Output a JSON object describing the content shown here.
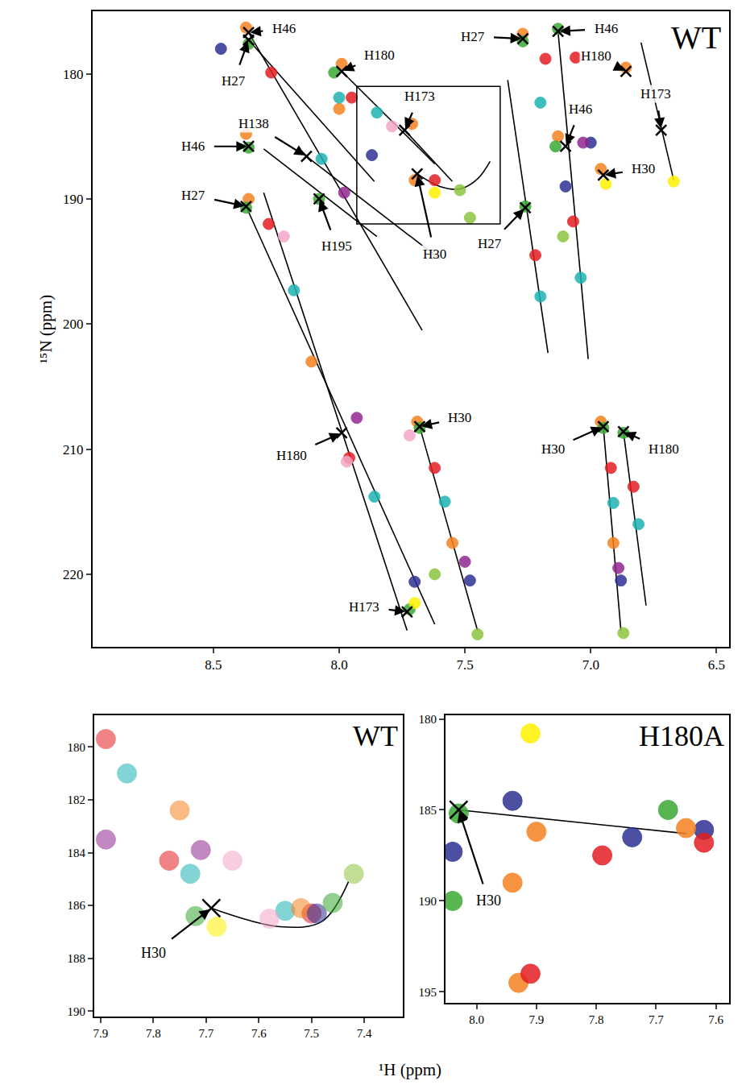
{
  "chart_data": [
    {
      "type": "scatter",
      "label": "WT",
      "y_label": "¹⁵N (ppm)",
      "xlim": [
        8.98,
        6.45
      ],
      "xticks": [
        8.5,
        {
          "value": 8,
          "label": "8.0"
        },
        7.5,
        {
          "value": 7,
          "label": "7.0"
        },
        6.5
      ],
      "ylim": [
        225.8,
        175
      ],
      "yticks": [
        180,
        190,
        200,
        210,
        220
      ],
      "box": {
        "x0": 7.93,
        "x1": 7.36,
        "y0": 181.0,
        "y1": 192.0
      },
      "series": [
        {
          "type": "line",
          "color": "#000000",
          "line_style": "solid",
          "x": [
            8.36,
            7.67,
            null,
            8.36,
            7.86,
            null,
            7.99,
            7.62,
            null,
            7.74,
            7.55,
            null,
            8.13,
            7.6,
            null,
            8.3,
            7.85,
            null,
            8.37,
            7.62,
            null,
            8.3,
            7.73,
            null,
            7.68,
            7.45,
            null,
            7.33,
            7.17,
            null,
            7.13,
            7.01,
            null,
            6.8,
            6.67,
            null,
            6.95,
            6.88,
            null,
            6.87,
            6.78
          ],
          "y": [
            176.7,
            200.5,
            null,
            177.3,
            188.6,
            null,
            179.8,
            187.2,
            null,
            184.5,
            188.6,
            null,
            186.6,
            194.8,
            null,
            186.0,
            193.0,
            null,
            190.6,
            224.0,
            null,
            189.5,
            224.5,
            null,
            208.2,
            224.5,
            null,
            180.5,
            202.3,
            null,
            176.6,
            202.8,
            null,
            177.5,
            188.5,
            null,
            208.2,
            224.5,
            null,
            208.6,
            222.5
          ]
        },
        {
          "type": "line",
          "color": "#000000",
          "line_style": "spline",
          "x": [
            7.69,
            7.6,
            7.52,
            7.45,
            7.4
          ],
          "y": [
            188.0,
            189.0,
            189.2,
            188.4,
            187.0
          ]
        },
        {
          "type": "scatter",
          "marker": "circle",
          "color": "#f58220",
          "x": [
            8.37,
            8.37,
            8.36,
            7.99,
            7.71,
            7.69,
            7.27,
            7.13,
            6.96,
            6.86,
            6.96,
            8.11,
            7.55,
            6.91,
            8.0,
            7.7
          ],
          "y": [
            176.3,
            184.8,
            190.0,
            179.2,
            184.0,
            207.8,
            176.8,
            185.0,
            187.6,
            179.5,
            207.8,
            203.0,
            217.5,
            217.5,
            182.8,
            188.5
          ]
        },
        {
          "type": "scatter",
          "marker": "circle",
          "color": "#3aa935",
          "x": [
            8.36,
            8.36,
            8.37,
            8.02,
            8.08,
            7.72,
            7.27,
            7.14,
            7.13,
            7.26,
            6.95,
            6.87,
            7.68
          ],
          "y": [
            177.6,
            185.9,
            190.7,
            179.9,
            190.0,
            222.8,
            177.4,
            185.8,
            176.4,
            190.6,
            208.3,
            208.7,
            208.3
          ]
        },
        {
          "type": "scatter",
          "marker": "circle",
          "color": "#e31e24",
          "x": [
            8.27,
            8.28,
            7.95,
            7.96,
            7.62,
            7.22,
            7.07,
            6.92,
            6.83,
            7.62,
            7.18,
            7.06
          ],
          "y": [
            179.9,
            192.0,
            181.9,
            210.7,
            211.5,
            194.5,
            191.8,
            211.5,
            213.0,
            188.5,
            178.8,
            178.7
          ]
        },
        {
          "type": "scatter",
          "marker": "circle",
          "color": "#1fb3b3",
          "x": [
            8.18,
            7.85,
            7.86,
            7.58,
            7.2,
            7.04,
            6.91,
            6.81,
            8.0,
            7.2,
            8.07
          ],
          "y": [
            197.3,
            183.1,
            213.8,
            214.2,
            197.8,
            196.3,
            214.3,
            216.0,
            181.9,
            182.3,
            186.8
          ]
        },
        {
          "type": "scatter",
          "marker": "circle",
          "color": "#2e3192",
          "x": [
            7.87,
            7.48,
            6.88,
            7.7,
            7.1,
            7.0,
            8.47
          ],
          "y": [
            186.5,
            220.5,
            220.5,
            220.6,
            189.0,
            185.5,
            178.0
          ]
        },
        {
          "type": "scatter",
          "marker": "circle",
          "color": "#92278f",
          "x": [
            7.93,
            7.5,
            7.98,
            6.89,
            7.03
          ],
          "y": [
            207.5,
            219.0,
            189.5,
            219.5,
            185.5
          ]
        },
        {
          "type": "scatter",
          "marker": "circle",
          "color": "#f4a6c8",
          "x": [
            7.79,
            7.97,
            8.22,
            7.72
          ],
          "y": [
            184.2,
            211.0,
            193.0,
            208.9
          ]
        },
        {
          "type": "scatter",
          "marker": "circle",
          "color": "#8dc63f",
          "x": [
            7.52,
            7.45,
            6.87,
            7.62,
            7.11,
            7.48
          ],
          "y": [
            189.3,
            224.8,
            224.7,
            220.0,
            193.0,
            191.5
          ]
        },
        {
          "type": "scatter",
          "marker": "circle",
          "color": "#fff200",
          "x": [
            7.62,
            7.7,
            6.67,
            6.94
          ],
          "y": [
            189.5,
            222.3,
            188.6,
            188.8
          ]
        },
        {
          "type": "scatter",
          "marker": "x",
          "color": "#000000",
          "x": [
            8.36,
            8.36,
            7.99,
            7.74,
            7.69,
            8.13,
            8.36,
            8.37,
            8.08,
            7.27,
            7.13,
            6.86,
            6.72,
            7.1,
            6.95,
            7.26,
            7.68,
            7.99,
            6.95,
            6.87,
            7.73
          ],
          "y": [
            176.7,
            177.3,
            179.8,
            184.5,
            188.0,
            186.6,
            185.8,
            190.6,
            190.0,
            177.2,
            176.6,
            179.8,
            184.5,
            185.8,
            188.1,
            190.7,
            208.2,
            208.7,
            208.2,
            208.6,
            223.0
          ]
        }
      ],
      "annotations": [
        {
          "text": "H46",
          "x": 8.36,
          "y": 176.7,
          "tx": 8.22,
          "ty": 176.4
        },
        {
          "text": "H27",
          "x": 8.36,
          "y": 177.3,
          "tx": 8.42,
          "ty": 180.6
        },
        {
          "text": "H180",
          "x": 7.99,
          "y": 179.8,
          "tx": 7.84,
          "ty": 178.5
        },
        {
          "text": "H173",
          "x": 7.74,
          "y": 184.5,
          "tx": 7.68,
          "ty": 181.8
        },
        {
          "text": "H138",
          "x": 8.13,
          "y": 186.6,
          "tx": 8.34,
          "ty": 184.0
        },
        {
          "text": "H46",
          "x": 8.36,
          "y": 185.8,
          "tx": 8.58,
          "ty": 185.8
        },
        {
          "text": "H27",
          "x": 8.37,
          "y": 190.6,
          "tx": 8.58,
          "ty": 189.7
        },
        {
          "text": "H195",
          "x": 8.08,
          "y": 190.0,
          "tx": 8.01,
          "ty": 193.8
        },
        {
          "text": "H30",
          "x": 7.69,
          "y": 188.0,
          "tx": 7.62,
          "ty": 194.4
        },
        {
          "text": "H27",
          "x": 7.27,
          "y": 177.2,
          "tx": 7.47,
          "ty": 177.0
        },
        {
          "text": "H46",
          "x": 7.13,
          "y": 176.6,
          "tx": 6.94,
          "ty": 176.4
        },
        {
          "text": "H180",
          "x": 6.86,
          "y": 179.8,
          "tx": 6.98,
          "ty": 178.6
        },
        {
          "text": "H173",
          "x": 6.72,
          "y": 184.5,
          "tx": 6.74,
          "ty": 181.6
        },
        {
          "text": "H46",
          "x": 7.1,
          "y": 185.8,
          "tx": 7.04,
          "ty": 182.8
        },
        {
          "text": "H30",
          "x": 6.95,
          "y": 188.1,
          "tx": 6.79,
          "ty": 187.6
        },
        {
          "text": "H27",
          "x": 7.26,
          "y": 190.7,
          "tx": 7.4,
          "ty": 193.6
        },
        {
          "text": "H30",
          "x": 7.68,
          "y": 208.2,
          "tx": 7.52,
          "ty": 207.5
        },
        {
          "text": "H180",
          "x": 7.99,
          "y": 208.7,
          "tx": 8.19,
          "ty": 210.5
        },
        {
          "text": "H30",
          "x": 6.95,
          "y": 208.2,
          "tx": 7.15,
          "ty": 210.0
        },
        {
          "text": "H180",
          "x": 6.87,
          "y": 208.6,
          "tx": 6.71,
          "ty": 210.0
        },
        {
          "text": "H173",
          "x": 7.73,
          "y": 223.0,
          "tx": 7.9,
          "ty": 222.6
        }
      ]
    },
    {
      "type": "scatter",
      "label": "WT",
      "xlim": [
        7.912,
        7.327
      ],
      "xticks": [
        7.9,
        7.8,
        7.7,
        7.6,
        7.5,
        7.4
      ],
      "ylim": [
        190.2,
        178.8
      ],
      "yticks": [
        180,
        182,
        184,
        186,
        188,
        190
      ],
      "series": [
        {
          "type": "line",
          "color": "#000000",
          "line_style": "spline",
          "x": [
            7.69,
            7.56,
            7.48,
            7.43
          ],
          "y": [
            186.1,
            186.8,
            186.6,
            185.1
          ]
        },
        {
          "type": "scatter",
          "marker": "circle",
          "color": "#e31e24",
          "x": [
            7.89,
            7.5,
            7.77
          ],
          "y": [
            179.7,
            186.3,
            184.3
          ]
        },
        {
          "type": "scatter",
          "marker": "circle",
          "color": "#1fb3b3",
          "x": [
            7.85,
            7.55,
            7.73
          ],
          "y": [
            181.0,
            186.2,
            184.8
          ]
        },
        {
          "type": "scatter",
          "marker": "circle",
          "color": "#f58220",
          "x": [
            7.75,
            7.52
          ],
          "y": [
            182.4,
            186.1
          ]
        },
        {
          "type": "scatter",
          "marker": "circle",
          "color": "#92278f",
          "x": [
            7.71,
            7.89
          ],
          "y": [
            183.9,
            183.5
          ]
        },
        {
          "type": "scatter",
          "marker": "circle",
          "color": "#2e3192",
          "x": [
            7.49
          ],
          "y": [
            186.3
          ]
        },
        {
          "type": "scatter",
          "marker": "circle",
          "color": "#3aa935",
          "x": [
            7.72,
            7.46
          ],
          "y": [
            186.4,
            185.9
          ]
        },
        {
          "type": "scatter",
          "marker": "circle",
          "color": "#f4a6c8",
          "x": [
            7.65,
            7.58
          ],
          "y": [
            184.3,
            186.5
          ]
        },
        {
          "type": "scatter",
          "marker": "circle",
          "color": "#fff200",
          "x": [
            7.68
          ],
          "y": [
            186.8
          ]
        },
        {
          "type": "scatter",
          "marker": "circle",
          "color": "#8dc63f",
          "x": [
            7.42
          ],
          "y": [
            184.8
          ]
        },
        {
          "type": "scatter",
          "marker": "x",
          "color": "#000000",
          "x": [
            7.69
          ],
          "y": [
            186.1
          ]
        }
      ],
      "annotations": [
        {
          "text": "H30",
          "x": 7.69,
          "y": 186.1,
          "tx": 7.8,
          "ty": 187.8
        }
      ]
    },
    {
      "type": "scatter",
      "label": "H180A",
      "xlim": [
        8.052,
        7.578
      ],
      "xticks": [
        {
          "value": 8,
          "label": "8.0"
        },
        7.9,
        7.8,
        7.7,
        7.6
      ],
      "ylim": [
        195.6,
        179.8
      ],
      "yticks": [
        180,
        185,
        190,
        195
      ],
      "series": [
        {
          "type": "line",
          "color": "#000000",
          "line_style": "solid",
          "x": [
            8.03,
            7.65
          ],
          "y": [
            185.0,
            186.3
          ]
        },
        {
          "type": "scatter",
          "marker": "circle",
          "color": "#fff200",
          "x": [
            7.91
          ],
          "y": [
            180.8
          ]
        },
        {
          "type": "scatter",
          "marker": "circle",
          "color": "#3aa935",
          "x": [
            8.03,
            7.68,
            8.04
          ],
          "y": [
            185.2,
            185.0,
            190.0
          ]
        },
        {
          "type": "scatter",
          "marker": "circle",
          "color": "#2e3192",
          "x": [
            7.94,
            8.04,
            7.74,
            7.62
          ],
          "y": [
            184.5,
            187.3,
            186.5,
            186.1
          ]
        },
        {
          "type": "scatter",
          "marker": "circle",
          "color": "#f58220",
          "x": [
            7.9,
            7.94,
            7.65,
            7.93
          ],
          "y": [
            186.2,
            189.0,
            186.0,
            194.5
          ]
        },
        {
          "type": "scatter",
          "marker": "circle",
          "color": "#e31e24",
          "x": [
            7.79,
            7.91,
            7.62
          ],
          "y": [
            187.5,
            194.0,
            186.8
          ]
        },
        {
          "type": "scatter",
          "marker": "x",
          "color": "#000000",
          "x": [
            8.03
          ],
          "y": [
            185.0
          ]
        }
      ],
      "annotations": [
        {
          "text": "H30",
          "x": 8.03,
          "y": 185.0,
          "tx": 7.98,
          "ty": 190.0
        }
      ]
    }
  ],
  "x_label": "¹H (ppm)"
}
